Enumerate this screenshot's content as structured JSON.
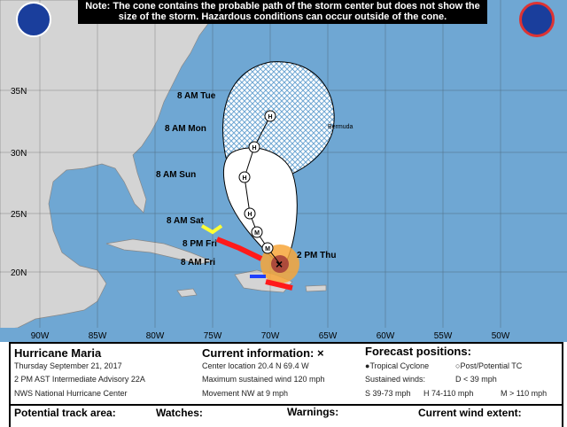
{
  "note": "Note: The cone contains the probable path of the storm center but does not show the size of the storm. Hazardous conditions can occur outside of the cone.",
  "logos": {
    "left": "NOAA",
    "right": "NWS"
  },
  "colors": {
    "ocean": "#6fa7d3",
    "land": "#d4d4d4",
    "cone": "#ffffff",
    "hurricane_warning": "#ff1a1a",
    "tropical_storm_warning": "#1f3fff",
    "tropical_storm_watch": "#ffff33",
    "hurricane_wind": "#a6403a",
    "ts_wind": "#f7a63a"
  },
  "latitudes": [
    "35N",
    "30N",
    "25N",
    "20N"
  ],
  "longitudes": [
    "90W",
    "85W",
    "80W",
    "75W",
    "70W",
    "65W",
    "60W",
    "55W",
    "50W"
  ],
  "place_label": "Bermuda",
  "track": [
    {
      "label": "2 PM Thu",
      "type": "current"
    },
    {
      "label": "8 AM Fri",
      "type": "M"
    },
    {
      "label": "8 PM Fri",
      "type": "M"
    },
    {
      "label": "8 AM Sat",
      "type": "H"
    },
    {
      "label": "8 AM Sun",
      "type": "H"
    },
    {
      "label": "8 AM Mon",
      "type": "H"
    },
    {
      "label": "8 AM Tue",
      "type": "H"
    }
  ],
  "info": {
    "storm": "Hurricane Maria",
    "date": "Thursday September 21, 2017",
    "advisory": "2 PM AST Intermediate Advisory 22A",
    "center": "NWS National Hurricane Center",
    "current_title": "Current information: ×",
    "location": "Center location 20.4 N 69.4 W",
    "wind": "Maximum sustained wind 120 mph",
    "movement": "Movement NW at 9 mph",
    "forecast_title": "Forecast positions:",
    "tc": "Tropical Cyclone",
    "post_tc": "Post/Potential TC",
    "sustained": "Sustained winds:",
    "d": "D < 39 mph",
    "s": "S 39-73 mph",
    "h": "H 74-110 mph",
    "m": "M > 110 mph"
  },
  "legend": {
    "track_area": "Potential track area:",
    "watches": "Watches:",
    "warnings": "Warnings:",
    "wind_extent": "Current wind extent:"
  }
}
